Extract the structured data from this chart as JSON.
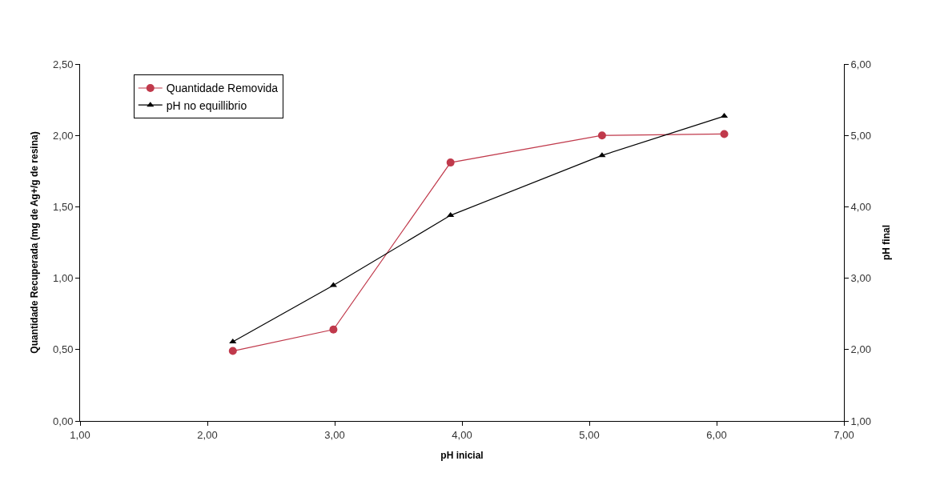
{
  "chart_data": {
    "type": "line",
    "xlabel": "pH inicial",
    "ylabel": "Quantidade Recuperada (mg de Ag+/g de resina)",
    "y2label": "pH final",
    "x": [
      2.2,
      2.99,
      3.91,
      5.1,
      6.06
    ],
    "series": [
      {
        "name": "Quantidade Removida",
        "color": "#c0394b",
        "marker": "circle",
        "values": [
          0.49,
          0.64,
          1.81,
          2.0,
          2.01
        ]
      },
      {
        "name": "pH no equillibrio",
        "color": "#000000",
        "marker": "triangle",
        "axis": "y2",
        "values": [
          2.11,
          2.9,
          3.88,
          4.72,
          5.27
        ]
      }
    ],
    "xlim": [
      1,
      7
    ],
    "xticks": [
      {
        "value": 1,
        "label": "1,00"
      },
      {
        "value": 2,
        "label": "2,00"
      },
      {
        "value": 3,
        "label": "3,00"
      },
      {
        "value": 4,
        "label": "4,00"
      },
      {
        "value": 5,
        "label": "5,00"
      },
      {
        "value": 6,
        "label": "6,00"
      },
      {
        "value": 7,
        "label": "7,00"
      }
    ],
    "ylim": [
      0,
      2.5
    ],
    "yticks": [
      {
        "value": 0,
        "label": "0,00"
      },
      {
        "value": 0.5,
        "label": "0,50"
      },
      {
        "value": 1,
        "label": "1,00"
      },
      {
        "value": 1.5,
        "label": "1,50"
      },
      {
        "value": 2,
        "label": "2,00"
      },
      {
        "value": 2.5,
        "label": "2,50"
      }
    ],
    "y2lim": [
      1,
      6
    ],
    "y2ticks": [
      {
        "value": 1,
        "label": "1,00"
      },
      {
        "value": 2,
        "label": "2,00"
      },
      {
        "value": 3,
        "label": "3,00"
      },
      {
        "value": 4,
        "label": "4,00"
      },
      {
        "value": 5,
        "label": "5,00"
      },
      {
        "value": 6,
        "label": "6,00"
      }
    ],
    "legend": "top left",
    "line_style": "solid"
  }
}
